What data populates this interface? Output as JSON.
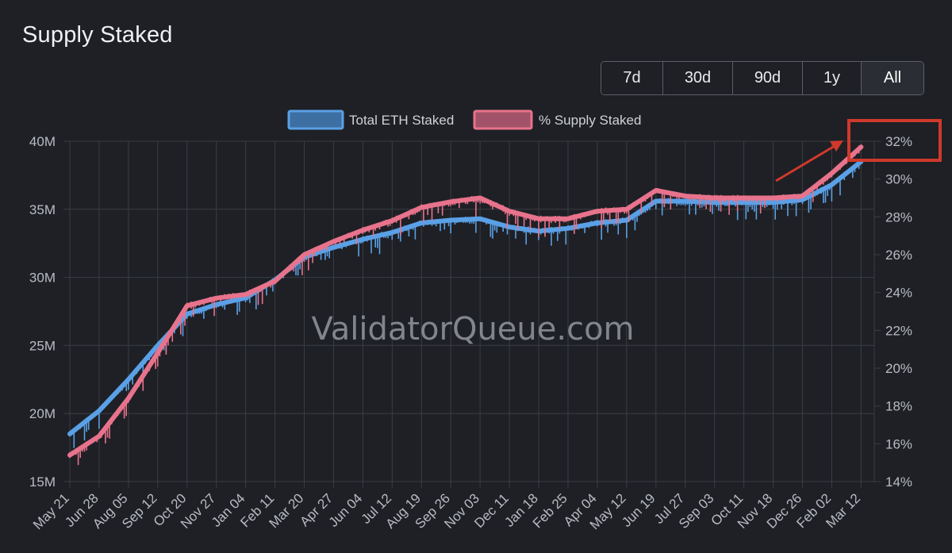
{
  "title": "Supply Staked",
  "ranges": [
    {
      "label": "7d",
      "active": false
    },
    {
      "label": "30d",
      "active": false
    },
    {
      "label": "90d",
      "active": false
    },
    {
      "label": "1y",
      "active": false
    },
    {
      "label": "All",
      "active": true
    }
  ],
  "watermark": "ValidatorQueue.com",
  "colors": {
    "background": "#1e2025",
    "grid": "#3a3d44",
    "eth_series": "#5aa0e6",
    "pct_series": "#e8738c",
    "annotation": "#d0392b"
  },
  "chart_data": {
    "type": "line",
    "title": "Supply Staked",
    "legend": [
      "Total ETH Staked",
      "% Supply Staked"
    ],
    "legend_position": "top-center",
    "grid": true,
    "categories": [
      "May 21",
      "Jun 28",
      "Aug 05",
      "Sep 12",
      "Oct 20",
      "Nov 27",
      "Jan 04",
      "Feb 11",
      "Mar 20",
      "Apr 27",
      "Jun 04",
      "Jul 12",
      "Aug 19",
      "Sep 26",
      "Nov 03",
      "Dec 11",
      "Jan 18",
      "Feb 25",
      "Apr 04",
      "May 12",
      "Jun 19",
      "Jul 27",
      "Sep 03",
      "Oct 11",
      "Nov 18",
      "Dec 26",
      "Feb 02",
      "Mar 12"
    ],
    "y_left": {
      "label": "Total ETH Staked",
      "ticks": [
        "15M",
        "20M",
        "25M",
        "30M",
        "35M",
        "40M"
      ],
      "range": [
        15,
        40
      ]
    },
    "y_right": {
      "label": "% Supply Staked",
      "ticks": [
        "14%",
        "16%",
        "18%",
        "20%",
        "22%",
        "24%",
        "26%",
        "28%",
        "30%",
        "32%"
      ],
      "range": [
        14,
        32
      ]
    },
    "series": [
      {
        "name": "Total ETH Staked",
        "unit": "M ETH",
        "axis": "left",
        "values": [
          18.5,
          20.2,
          22.5,
          25.0,
          27.3,
          28.0,
          28.5,
          29.8,
          31.5,
          32.2,
          32.8,
          33.3,
          34.0,
          34.2,
          34.3,
          33.7,
          33.4,
          33.6,
          34.0,
          34.2,
          35.6,
          35.6,
          35.5,
          35.5,
          35.5,
          35.7,
          36.8,
          38.5
        ]
      },
      {
        "name": "% Supply Staked",
        "unit": "%",
        "axis": "right",
        "values": [
          15.4,
          16.4,
          18.4,
          20.8,
          23.3,
          23.7,
          23.9,
          24.6,
          26.0,
          26.7,
          27.3,
          27.8,
          28.5,
          28.8,
          29.0,
          28.3,
          27.9,
          27.9,
          28.3,
          28.4,
          29.4,
          29.1,
          29.0,
          29.0,
          29.0,
          29.1,
          30.3,
          31.7
        ]
      }
    ],
    "annotation": {
      "type": "arrow-to-box",
      "label": "32%",
      "target": "latest % Supply Staked value"
    }
  }
}
